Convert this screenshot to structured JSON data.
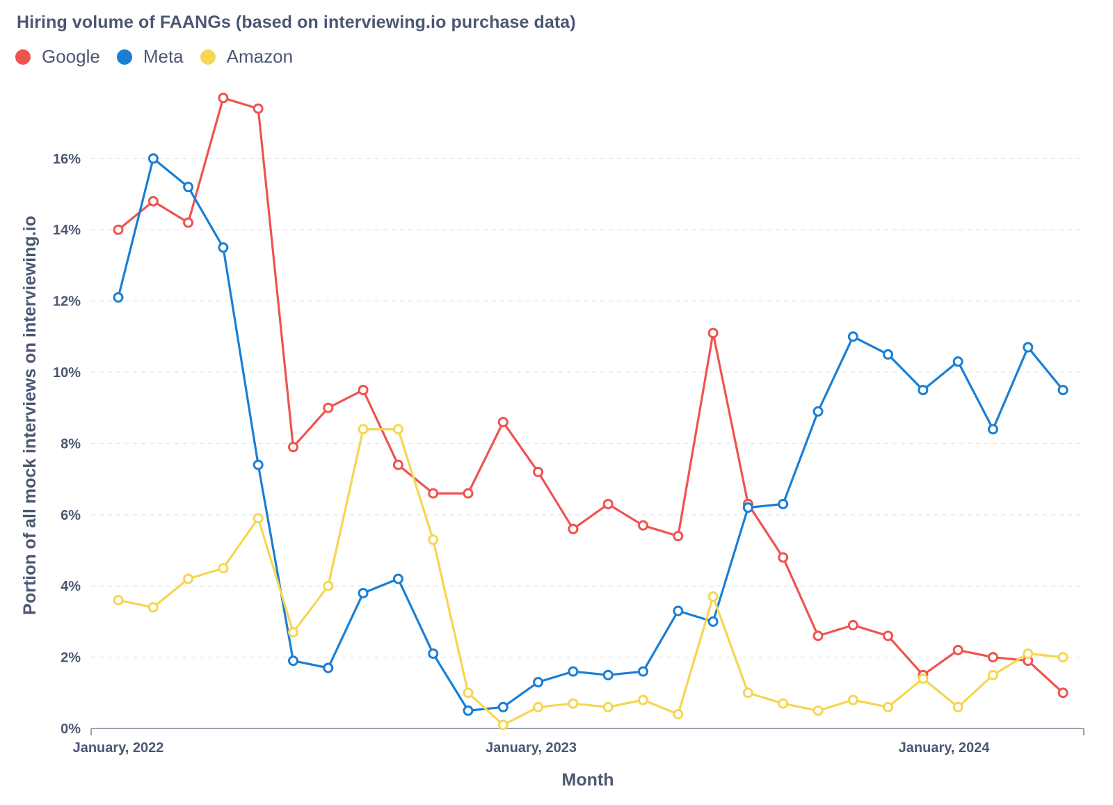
{
  "chart_data": {
    "type": "line",
    "title": "Hiring volume of FAANGs (based on interviewing.io purchase data)",
    "xlabel": "Month",
    "ylabel": "Portion of all mock interviews on interviewing.io",
    "ylim": [
      0,
      18
    ],
    "y_ticks": [
      0,
      2,
      4,
      6,
      8,
      10,
      12,
      14,
      16
    ],
    "y_tick_labels": [
      "0%",
      "2%",
      "4%",
      "6%",
      "8%",
      "10%",
      "12%",
      "14%",
      "16%"
    ],
    "x_ticks": [
      {
        "label": "January, 2022",
        "index": 0
      },
      {
        "label": "January, 2023",
        "index": 11.8
      },
      {
        "label": "January, 2024",
        "index": 23.6
      }
    ],
    "x": [
      "2022-01",
      "2022-02",
      "2022-03",
      "2022-04",
      "2022-05",
      "2022-06",
      "2022-07",
      "2022-08",
      "2022-09",
      "2022-10",
      "2022-11",
      "2022-12",
      "2023-01",
      "2023-02",
      "2023-03",
      "2023-04",
      "2023-05",
      "2023-06",
      "2023-07",
      "2023-08",
      "2023-09",
      "2023-10",
      "2023-11",
      "2023-12",
      "2024-01",
      "2024-02",
      "2024-03",
      "2024-04"
    ],
    "legend_position": "top-left",
    "grid": true,
    "series": [
      {
        "name": "Google",
        "color": "#ef5350",
        "values": [
          14.0,
          14.8,
          14.2,
          17.7,
          17.4,
          7.9,
          9.0,
          9.5,
          7.4,
          6.6,
          6.6,
          8.6,
          7.2,
          5.6,
          6.3,
          5.7,
          5.4,
          11.1,
          6.3,
          4.8,
          2.6,
          2.9,
          2.6,
          1.5,
          2.2,
          2.0,
          1.9,
          1.0
        ]
      },
      {
        "name": "Meta",
        "color": "#1a7fd4",
        "values": [
          12.1,
          16.0,
          15.2,
          13.5,
          7.4,
          1.9,
          1.7,
          3.8,
          4.2,
          2.1,
          0.5,
          0.6,
          1.3,
          1.6,
          1.5,
          1.6,
          3.3,
          3.0,
          6.2,
          6.3,
          8.9,
          11.0,
          10.5,
          9.5,
          10.3,
          8.4,
          10.7,
          9.5
        ]
      },
      {
        "name": "Amazon",
        "color": "#f5d653",
        "values": [
          3.6,
          3.4,
          4.2,
          4.5,
          5.9,
          2.7,
          4.0,
          8.4,
          8.4,
          5.3,
          1.0,
          0.1,
          0.6,
          0.7,
          0.6,
          0.8,
          0.4,
          3.7,
          1.0,
          0.7,
          0.5,
          0.8,
          0.6,
          1.4,
          0.6,
          1.5,
          2.1,
          2.0
        ]
      }
    ]
  }
}
